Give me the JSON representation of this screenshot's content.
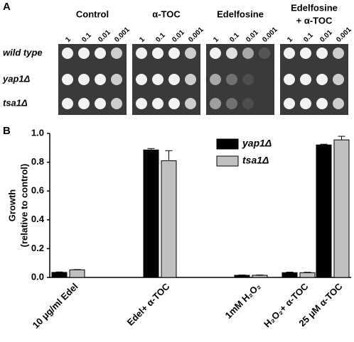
{
  "panel_a": {
    "label": "A",
    "columns": [
      {
        "title": [
          "Control"
        ],
        "dilutions": [
          "1",
          "0.1",
          "0.01",
          "0.001"
        ]
      },
      {
        "title": [
          "α-TOC"
        ],
        "dilutions": [
          "1",
          "0.1",
          "0.01",
          "0.001"
        ]
      },
      {
        "title": [
          "Edelfosine"
        ],
        "dilutions": [
          "1",
          "0.1",
          "0.01",
          "0.001"
        ]
      },
      {
        "title": [
          "Edelfosine",
          "+ α-TOC"
        ],
        "dilutions": [
          "1",
          "0.1",
          "0.01",
          "0.001"
        ]
      }
    ],
    "rows": [
      "wild type",
      "yap1Δ",
      "tsa1Δ"
    ]
  },
  "chart_data": {
    "type": "bar",
    "label": "B",
    "y_label": [
      "Growth",
      "(relative to control)"
    ],
    "categories": [
      "10 μg/ml Edel",
      "Edel+ α-TOC",
      "1mM H₂O₂",
      "H₂O₂+ α-TOC",
      "25 μM α-TOC"
    ],
    "series": [
      {
        "name": "yap1Δ",
        "color": "#000000",
        "values": [
          0.035,
          0.885,
          0.015,
          0.033,
          0.92
        ],
        "errors": [
          0.003,
          0.01,
          0.002,
          0.004,
          0.005
        ]
      },
      {
        "name": "tsa1Δ",
        "color": "#c0c0c0",
        "values": [
          0.053,
          0.81,
          0.015,
          0.033,
          0.955
        ],
        "errors": [
          0.002,
          0.07,
          0.002,
          0.003,
          0.025
        ]
      }
    ],
    "ylim": [
      0,
      1
    ],
    "yticks": [
      {
        "value": 0,
        "label": "0.0"
      },
      0.2,
      0.4,
      0.6,
      0.8,
      {
        "value": 1,
        "label": "1.0"
      }
    ]
  }
}
